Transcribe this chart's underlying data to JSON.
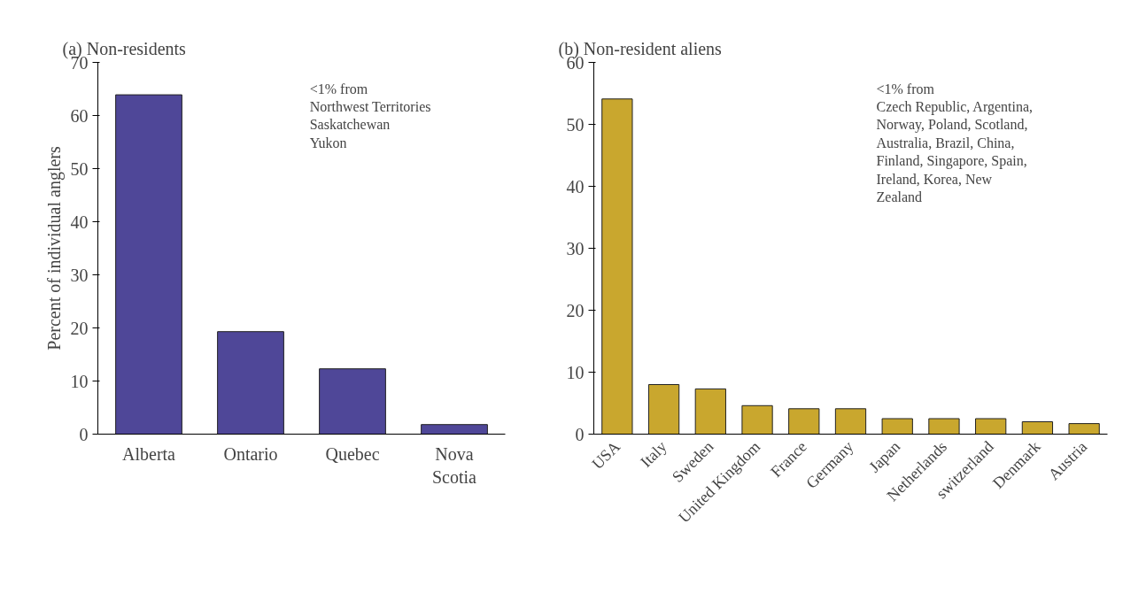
{
  "chart_data": [
    {
      "type": "bar",
      "title": "(a) Non-residents",
      "ylabel": "Percent of individual anglers",
      "categories": [
        "Alberta",
        "Ontario",
        "Quebec",
        "Nova Scotia"
      ],
      "values": [
        63.9,
        19.3,
        12.3,
        1.8
      ],
      "color": "#4f4798",
      "ylim": [
        0,
        70
      ],
      "yticks": [
        0,
        10,
        20,
        30,
        40,
        50,
        60,
        70
      ],
      "grid": false,
      "annotations": [
        "<1% from\nNorthwest Territories\nSaskatchewan\nYukon"
      ]
    },
    {
      "type": "bar",
      "title": "(b) Non-resident aliens",
      "categories": [
        "USA",
        "Italy",
        "Sweden",
        "United Kingdom",
        "France",
        "Germany",
        "Japan",
        "Netherlands",
        "switzerland",
        "Denmark",
        "Austria"
      ],
      "values": [
        54.1,
        8.0,
        7.3,
        4.6,
        4.1,
        4.1,
        2.5,
        2.5,
        2.5,
        2.0,
        1.7
      ],
      "color": "#c9a72e",
      "ylim": [
        0,
        60
      ],
      "yticks": [
        0,
        10,
        20,
        30,
        40,
        50,
        60
      ],
      "grid": false,
      "annotations": [
        "<1% from\nCzech Republic, Argentina, Norway, Poland, Scotland, Australia, Brazil, China, Finland, Singapore, Spain, Ireland, Korea, New Zealand"
      ]
    }
  ]
}
